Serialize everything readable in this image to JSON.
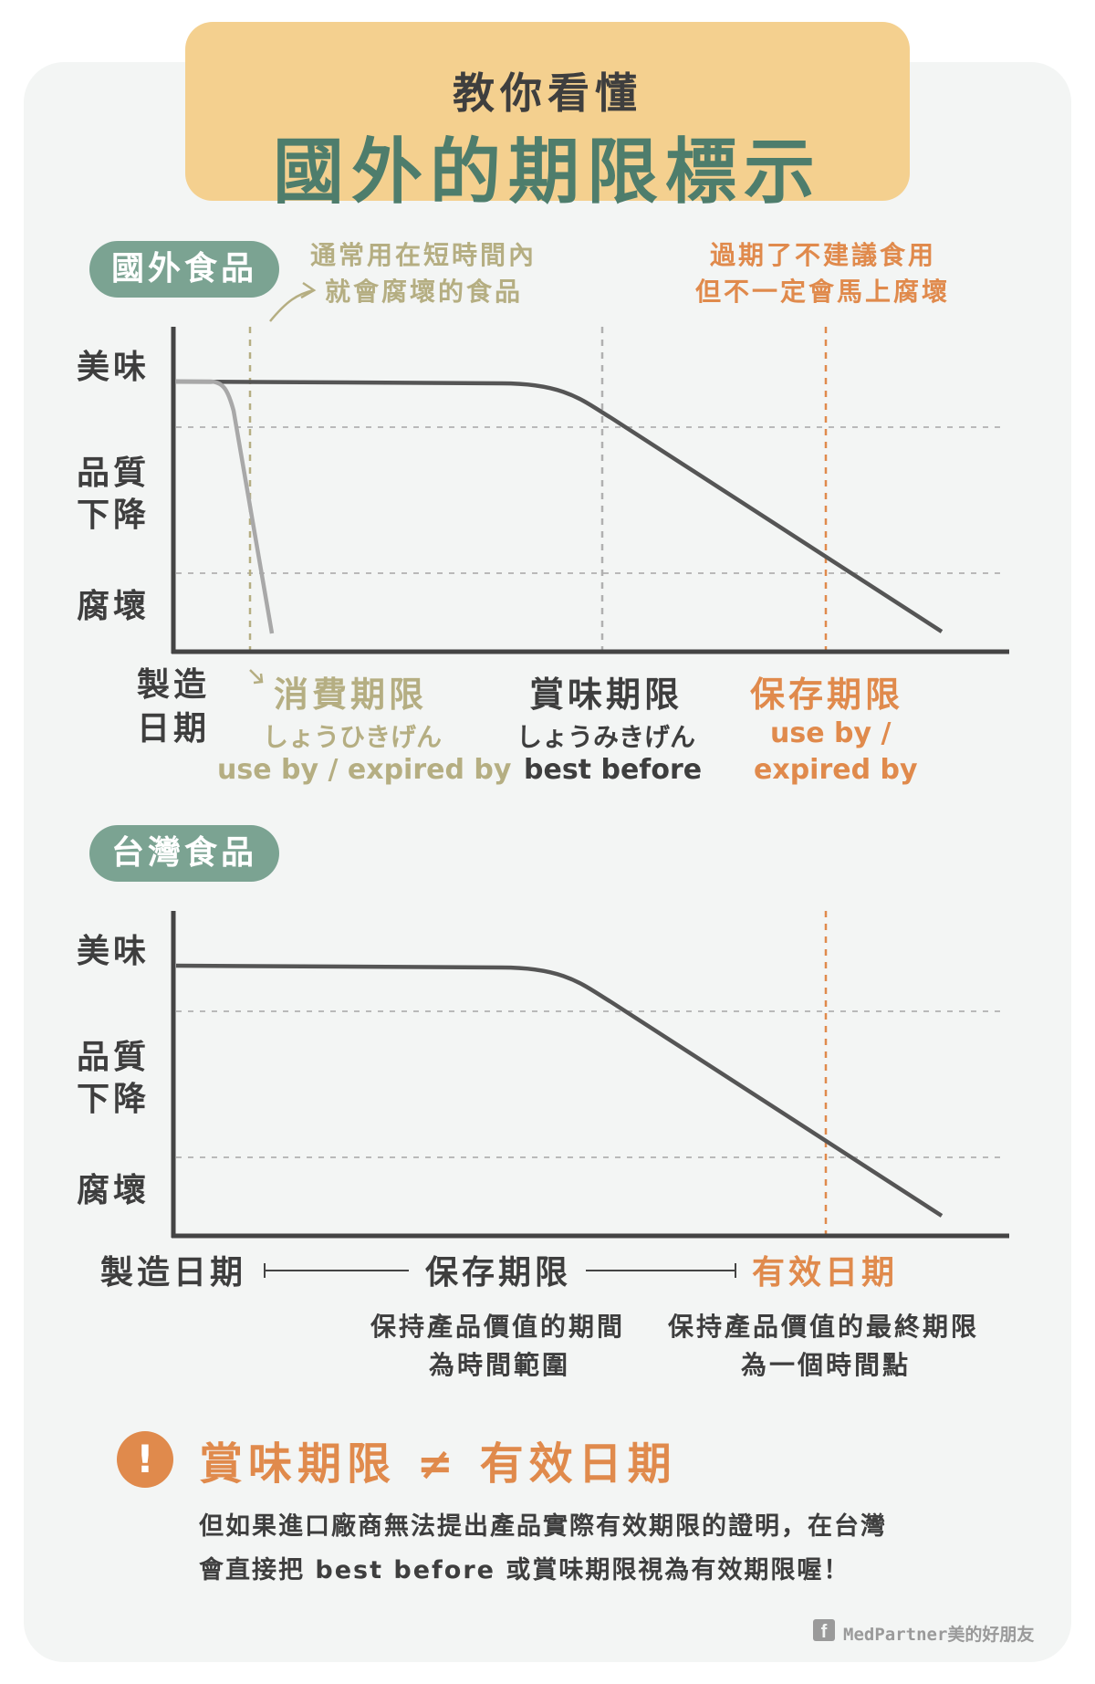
{
  "title": {
    "sub": "教你看懂",
    "main": "國外的期限標示"
  },
  "foreign": {
    "pill": "國外食品",
    "note_left": [
      "通常用在短時間內",
      "就會腐壞的食品"
    ],
    "note_right": [
      "過期了不建議食用",
      "但不一定會馬上腐壞"
    ],
    "y_labels": {
      "top": "美味",
      "mid": [
        "品質",
        "下降"
      ],
      "bottom": "腐壞"
    },
    "origin": [
      "製造",
      "日期"
    ],
    "terms": [
      {
        "title": "消費期限",
        "kana": "しょうひきげん",
        "english": [
          "use by / expired by"
        ]
      },
      {
        "title": "賞味期限",
        "kana": "しょうみきげん",
        "english": [
          "best before"
        ]
      },
      {
        "title": "保存期限",
        "kana": "",
        "english": [
          "use by /",
          "expired by"
        ]
      }
    ]
  },
  "taiwan": {
    "pill": "台灣食品",
    "y_labels": {
      "top": "美味",
      "mid": [
        "品質",
        "下降"
      ],
      "bottom": "腐壞"
    },
    "timeline": {
      "start": "製造日期",
      "middle": "保存期限",
      "end": "有效日期"
    },
    "middle_desc": [
      "保持產品價值的期間",
      "為時間範圍"
    ],
    "end_desc": [
      "保持產品價值的最終期限",
      "為一個時間點"
    ]
  },
  "warning": {
    "icon_glyph": "!",
    "heading": "賞味期限 ≠ 有效日期",
    "lines": [
      "但如果進口廠商無法提出產品實際有效期限的證明，在台灣",
      "會直接把 best before 或賞味期限視為有效期限喔！"
    ]
  },
  "footer": {
    "icon": "facebook-icon",
    "glyph": "f",
    "text": "MedPartner美的好朋友"
  },
  "colors": {
    "title_bg": "#f4d08f",
    "title_main": "#4e7d6c",
    "pill_bg": "#7ba392",
    "olive": "#b5ae82",
    "orange": "#e08a4c",
    "curve": "#555555",
    "fast_curve": "#a8a8a8"
  }
}
